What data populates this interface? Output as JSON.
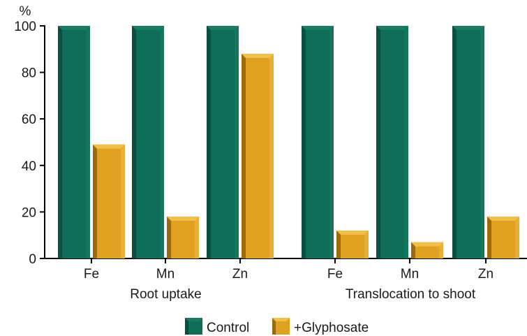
{
  "chart_data": {
    "type": "bar",
    "ylabel": "%",
    "ylim": [
      0,
      100
    ],
    "yticks": [
      "0",
      "20",
      "40",
      "60",
      "80",
      "100"
    ],
    "grid": false,
    "legend_position": "bottom-center",
    "groups": [
      {
        "label": "Root uptake",
        "categories": [
          "Fe",
          "Mn",
          "Zn"
        ]
      },
      {
        "label": "Translocation to shoot",
        "categories": [
          "Fe",
          "Mn",
          "Zn"
        ]
      }
    ],
    "categories": [
      "Fe",
      "Mn",
      "Zn",
      "Fe",
      "Mn",
      "Zn"
    ],
    "series": [
      {
        "name": "Control",
        "color": "#0f6e57",
        "values": [
          100,
          100,
          100,
          100,
          100,
          100
        ]
      },
      {
        "name": "+Glyphosate",
        "color": "#e0a020",
        "values": [
          49,
          18,
          88,
          12,
          7,
          18
        ]
      }
    ]
  }
}
